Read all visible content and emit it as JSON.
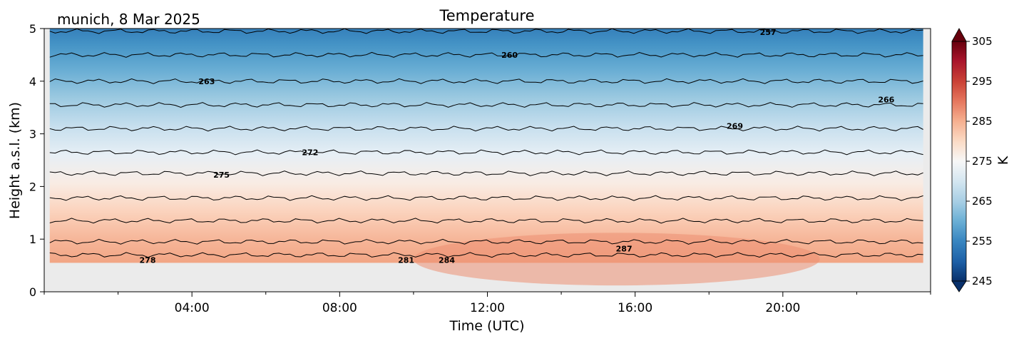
{
  "chart_data": {
    "type": "heatmap",
    "title": "Temperature",
    "location_date": "munich, 8 Mar 2025",
    "xlabel": "Time (UTC)",
    "ylabel": "Height a.s.l. (km)",
    "x_ticks": [
      "04:00",
      "08:00",
      "12:00",
      "16:00",
      "20:00"
    ],
    "x_tick_hours": [
      4,
      8,
      12,
      16,
      20
    ],
    "xlim_hours": [
      0,
      24
    ],
    "y_ticks": [
      "0",
      "1",
      "2",
      "3",
      "4",
      "5"
    ],
    "ylim": [
      0,
      5
    ],
    "data_min_height_km": 0.55,
    "colorbar": {
      "label": "K",
      "range": [
        245,
        305
      ],
      "ticks": [
        "245",
        "255",
        "265",
        "275",
        "285",
        "295",
        "305"
      ],
      "colormap": "RdBu_r",
      "extend": "both"
    },
    "contours": [
      {
        "level": "257",
        "height_km": 4.95
      },
      {
        "level": "260",
        "height_km": 4.5
      },
      {
        "level": "263",
        "height_km": 4.0
      },
      {
        "level": "266",
        "height_km": 3.55
      },
      {
        "level": "269",
        "height_km": 3.1
      },
      {
        "level": "272",
        "height_km": 2.65
      },
      {
        "level": "275",
        "height_km": 2.25
      },
      {
        "level": "278",
        "height_km": 1.78
      },
      {
        "level": "281",
        "height_km": 1.35
      },
      {
        "level": "284",
        "height_km": 0.95
      },
      {
        "level": "287",
        "height_km": 0.7
      }
    ],
    "contour_labels": [
      {
        "text": "257",
        "hour": 19.6,
        "height_km": 4.93
      },
      {
        "text": "260",
        "hour": 12.6,
        "height_km": 4.5
      },
      {
        "text": "263",
        "hour": 4.4,
        "height_km": 4.0
      },
      {
        "text": "266",
        "hour": 22.8,
        "height_km": 3.65
      },
      {
        "text": "269",
        "hour": 18.7,
        "height_km": 3.15
      },
      {
        "text": "272",
        "hour": 7.2,
        "height_km": 2.65
      },
      {
        "text": "275",
        "hour": 4.8,
        "height_km": 2.22
      },
      {
        "text": "278",
        "hour": 2.8,
        "height_km": 0.6
      },
      {
        "text": "281",
        "hour": 9.8,
        "height_km": 0.6
      },
      {
        "text": "284",
        "hour": 10.9,
        "height_km": 0.6
      },
      {
        "text": "287",
        "hour": 15.7,
        "height_km": 0.82
      }
    ],
    "grid": false
  }
}
